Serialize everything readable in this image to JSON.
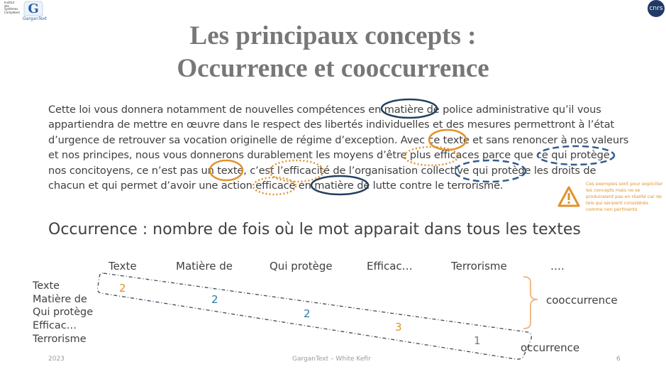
{
  "header": {
    "institute_text": "Institut des Systèmes Complexes",
    "logo_text": "GarganText",
    "cnrs_text": "cnrs"
  },
  "title": {
    "line1": "Les principaux concepts :",
    "line2": "Occurrence et cooccurrence"
  },
  "paragraph": {
    "lines": [
      "Cette loi vous donnera notamment de nouvelles compétences en matière de police administrative qu’il vous",
      "appartiendra de mettre en œuvre dans le respect des libertés individuelles et des mesures permettront à l’état",
      "d’urgence de retrouver sa vocation originelle de régime d’exception. Avec ce texte et sans renoncer à nos valeurs",
      "et nos principes, nous vous donnerons durablement les moyens d’être plus efficaces parce que ce qui protège",
      "nos concitoyens, ce n’est pas un texte, c’est l’efficacité de l’organisation collective qui protège les droits de",
      "chacun et qui permet d’avoir une action efficace en matière de lutte contre le terrorisme."
    ]
  },
  "note": {
    "text": "Ces exemples sont pour expliciter les concepts mais ne se produiraient pas en réalité car de tels qui seraient considérés comme non pertinents"
  },
  "occurrence": {
    "heading": "Occurrence : nombre de fois où le mot apparait dans tous les textes"
  },
  "matrix": {
    "columns": [
      "Texte",
      "Matière de",
      "Qui protège",
      "Efficac…",
      "Terrorisme",
      "…."
    ],
    "rows": [
      "Texte",
      "Matière de",
      "Qui protège",
      "Efficac…",
      "Terrorisme"
    ],
    "diagonal": [
      "2",
      "2",
      "2",
      "3",
      "1"
    ],
    "cooccurrence_label": "cooccurrence",
    "occurrence_label": "occurrence"
  },
  "footer": {
    "year": "2023",
    "center": "GarganText – White Kefir",
    "page": "6"
  },
  "colors": {
    "orange": "#e0922b",
    "navy": "#23405e",
    "blue": "#2f78a8",
    "gray": "#777777"
  }
}
